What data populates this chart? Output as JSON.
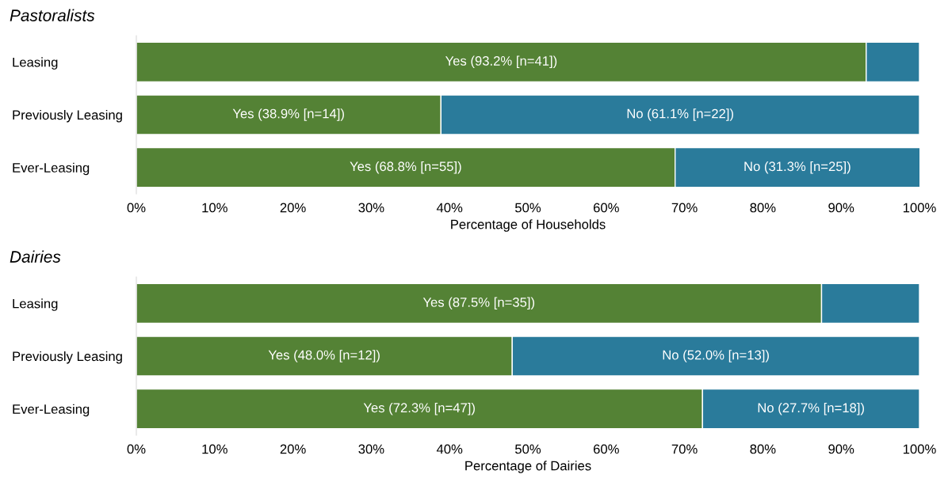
{
  "chart_data": [
    {
      "type": "bar",
      "orientation": "horizontal",
      "stacked": true,
      "title": "Pastoralists",
      "xlabel": "Percentage of Households",
      "categories": [
        "Leasing",
        "Previously Leasing",
        "Ever-Leasing"
      ],
      "xlim": [
        0,
        100
      ],
      "xticks": [
        {
          "value": 0,
          "label": "0%"
        },
        {
          "value": 10,
          "label": "10%"
        },
        {
          "value": 20,
          "label": "20%"
        },
        {
          "value": 30,
          "label": "30%"
        },
        {
          "value": 40,
          "label": "40%"
        },
        {
          "value": 50,
          "label": "50%"
        },
        {
          "value": 60,
          "label": "60%"
        },
        {
          "value": 70,
          "label": "70%"
        },
        {
          "value": 80,
          "label": "80%"
        },
        {
          "value": 90,
          "label": "90%"
        },
        {
          "value": 100,
          "label": "100%"
        }
      ],
      "series": [
        {
          "color": "#548235",
          "values": [
            93.2,
            38.9,
            68.8
          ],
          "value_labels": [
            "Yes (93.2% [n=41])",
            "Yes (38.9% [n=14])",
            "Yes (68.8% [n=55])"
          ]
        },
        {
          "color": "#2a7b9b",
          "values": [
            6.8,
            61.1,
            31.3
          ],
          "value_labels": [
            null,
            "No (61.1% [n=22])",
            "No (31.3% [n=25])"
          ]
        }
      ]
    },
    {
      "type": "bar",
      "orientation": "horizontal",
      "stacked": true,
      "title": "Dairies",
      "xlabel": "Percentage of Dairies",
      "categories": [
        "Leasing",
        "Previously Leasing",
        "Ever-Leasing"
      ],
      "xlim": [
        0,
        100
      ],
      "xticks": [
        {
          "value": 0,
          "label": "0%"
        },
        {
          "value": 10,
          "label": "10%"
        },
        {
          "value": 20,
          "label": "20%"
        },
        {
          "value": 30,
          "label": "30%"
        },
        {
          "value": 40,
          "label": "40%"
        },
        {
          "value": 50,
          "label": "50%"
        },
        {
          "value": 60,
          "label": "60%"
        },
        {
          "value": 70,
          "label": "70%"
        },
        {
          "value": 80,
          "label": "80%"
        },
        {
          "value": 90,
          "label": "90%"
        },
        {
          "value": 100,
          "label": "100%"
        }
      ],
      "series": [
        {
          "color": "#548235",
          "values": [
            87.5,
            48.0,
            72.3
          ],
          "value_labels": [
            "Yes (87.5% [n=35])",
            "Yes (48.0% [n=12])",
            "Yes (72.3% [n=47])"
          ]
        },
        {
          "color": "#2a7b9b",
          "values": [
            12.5,
            52.0,
            27.7
          ],
          "value_labels": [
            null,
            "No (52.0% [n=13])",
            "No (27.7% [n=18])"
          ]
        }
      ]
    }
  ]
}
